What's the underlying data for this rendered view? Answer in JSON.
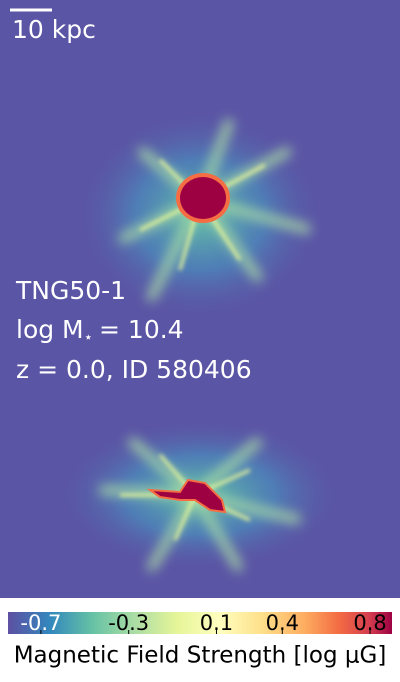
{
  "chart_data": {
    "type": "image",
    "scale_bar_label": "10 kpc",
    "annotations": {
      "simulation": "TNG50-1",
      "mass_prefix": "log M",
      "mass_subscript": "⋆",
      "mass_value": "= 10.4",
      "redshift_id": "z = 0.0, ID 580406"
    },
    "colorbar": {
      "label": "Magnetic Field Strength [log μG]",
      "clim": [
        -0.85,
        0.9
      ],
      "ticks": [
        -0.7,
        -0.3,
        0.1,
        0.4,
        0.8
      ],
      "colormap": "Spectral_r"
    }
  }
}
